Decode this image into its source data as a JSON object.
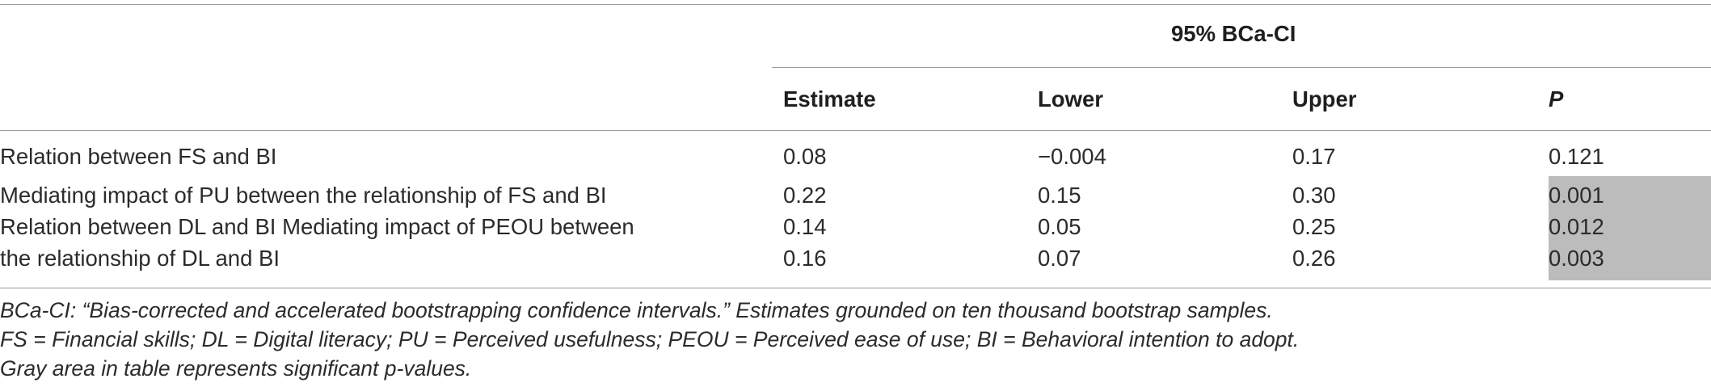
{
  "table": {
    "group_header": "95% BCa-CI",
    "columns": {
      "estimate": "Estimate",
      "lower": "Lower",
      "upper": "Upper",
      "p": "P"
    },
    "rows": [
      {
        "label": "Relation between FS and BI",
        "estimate": "0.08",
        "lower": "−0.004",
        "upper": "0.17",
        "p": "0.121",
        "significant": false
      },
      {
        "label": "Mediating impact of PU between the relationship of FS and BI",
        "estimate": "0.22",
        "lower": "0.15",
        "upper": "0.30",
        "p": "0.001",
        "significant": true
      },
      {
        "label": "Relation between DL and BI Mediating impact of PEOU between",
        "estimate": "0.14",
        "lower": "0.05",
        "upper": "0.25",
        "p": "0.012",
        "significant": true
      },
      {
        "label": "the relationship of DL and BI",
        "estimate": "0.16",
        "lower": "0.07",
        "upper": "0.26",
        "p": "0.003",
        "significant": true
      }
    ],
    "shade_color": "#bcbcbc"
  },
  "footnotes": [
    "BCa-CI: “Bias-corrected and accelerated bootstrapping confidence intervals.” Estimates grounded on ten thousand bootstrap samples.",
    "FS = Financial skills; DL = Digital literacy; PU = Perceived usefulness; PEOU = Perceived ease of use; BI = Behavioral intention to adopt.",
    "Gray area in table represents significant p-values."
  ]
}
